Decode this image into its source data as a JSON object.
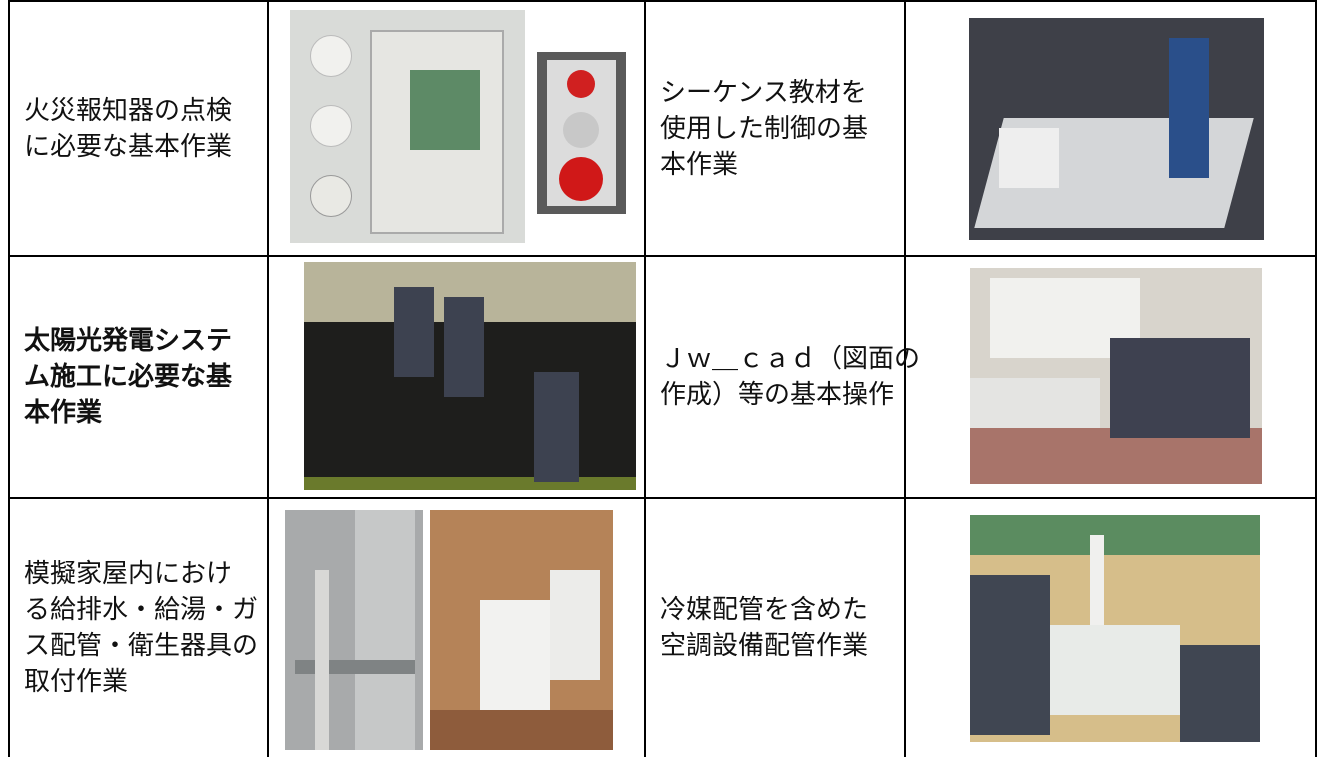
{
  "table": {
    "rows": [
      [
        {
          "lines": [
            "火災報知器の点検",
            "に必要な基本作業"
          ],
          "bold": false
        },
        {
          "lines": [
            "シーケンス教材を",
            "使用した制御の基",
            "本作業"
          ],
          "bold": false
        }
      ],
      [
        {
          "lines": [
            "太陽光発電システ",
            "ム施工に必要な基",
            "本作業"
          ],
          "bold": true
        },
        {
          "lines": [
            "Ｊｗ＿ｃａｄ（図面の",
            "作成）等の基本操作"
          ],
          "bold": false
        }
      ],
      [
        {
          "lines": [
            "模擬家屋内におけ",
            "る給排水・給湯・ガ",
            "ス配管・衛生器具の",
            "取付作業"
          ],
          "bold": false
        },
        {
          "lines": [
            "冷媒配管を含めた",
            "空調設備配管作業"
          ],
          "bold": false
        }
      ]
    ]
  }
}
